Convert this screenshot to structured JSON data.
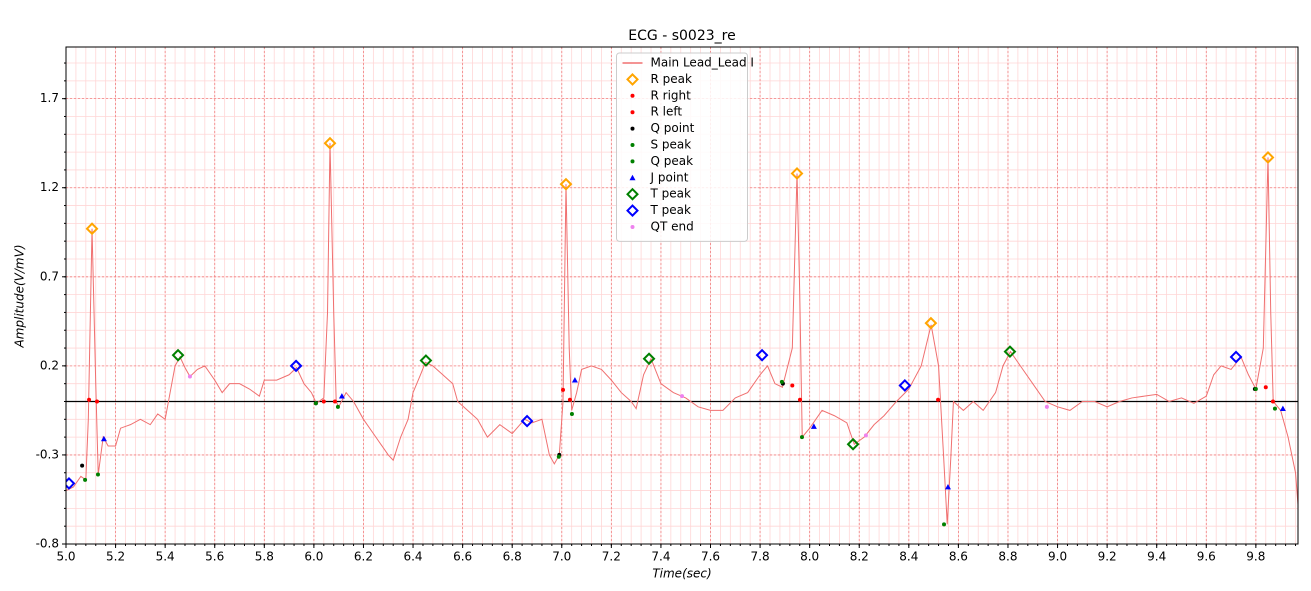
{
  "chart_data": {
    "type": "line",
    "title": "ECG - s0023_re",
    "xlabel": "Time(sec)",
    "ylabel": "Amplitude(V/mV)",
    "xlim": [
      5.0,
      9.97
    ],
    "ylim": [
      -0.8,
      1.99
    ],
    "xticks": [
      {
        "value": 5,
        "label": "5.0"
      },
      5.2,
      5.4,
      5.6,
      5.8,
      {
        "value": 6,
        "label": "6.0"
      },
      6.2,
      6.4,
      6.6,
      6.8,
      {
        "value": 7,
        "label": "7.0"
      },
      7.2,
      7.4,
      7.6,
      7.8,
      {
        "value": 8,
        "label": "8.0"
      },
      8.2,
      8.4,
      8.6,
      8.8,
      {
        "value": 9,
        "label": "9.0"
      },
      9.2,
      9.4,
      9.6,
      9.8
    ],
    "yticks": [
      -0.8,
      -0.3,
      0.2,
      0.7,
      1.2,
      1.7
    ],
    "grid": true,
    "minor_grid": true,
    "baseline": 0,
    "legend": "upper center",
    "series": [
      {
        "name": "Main Lead_Lead I",
        "color": "#f07070",
        "marker": "line",
        "x": [
          5.0,
          5.03,
          5.06,
          5.08,
          5.09,
          5.105,
          5.12,
          5.13,
          5.15,
          5.17,
          5.2,
          5.22,
          5.26,
          5.3,
          5.34,
          5.37,
          5.4,
          5.42,
          5.44,
          5.46,
          5.48,
          5.5,
          5.53,
          5.56,
          5.6,
          5.63,
          5.66,
          5.7,
          5.74,
          5.78,
          5.8,
          5.85,
          5.9,
          5.93,
          5.96,
          5.99,
          6.01,
          6.04,
          6.055,
          6.065,
          6.08,
          6.09,
          6.1,
          6.13,
          6.16,
          6.2,
          6.25,
          6.3,
          6.32,
          6.35,
          6.38,
          6.4,
          6.43,
          6.45,
          6.48,
          6.52,
          6.56,
          6.58,
          6.62,
          6.66,
          6.7,
          6.75,
          6.8,
          6.85,
          6.88,
          6.92,
          6.95,
          6.97,
          6.99,
          7.005,
          7.017,
          7.03,
          7.04,
          7.06,
          7.08,
          7.12,
          7.16,
          7.2,
          7.24,
          7.28,
          7.3,
          7.33,
          7.36,
          7.4,
          7.45,
          7.5,
          7.55,
          7.6,
          7.65,
          7.7,
          7.75,
          7.8,
          7.83,
          7.86,
          7.89,
          7.93,
          7.949,
          7.96,
          7.97,
          8.0,
          8.05,
          8.1,
          8.15,
          8.18,
          8.22,
          8.26,
          8.3,
          8.35,
          8.4,
          8.45,
          8.49,
          8.52,
          8.54,
          8.555,
          8.57,
          8.58,
          8.62,
          8.66,
          8.7,
          8.75,
          8.78,
          8.81,
          8.85,
          8.9,
          8.95,
          9.0,
          9.05,
          9.1,
          9.15,
          9.2,
          9.25,
          9.3,
          9.35,
          9.4,
          9.45,
          9.5,
          9.55,
          9.6,
          9.63,
          9.66,
          9.7,
          9.74,
          9.77,
          9.8,
          9.83,
          9.849,
          9.86,
          9.87,
          9.9,
          9.93,
          9.96,
          9.97
        ],
        "values": [
          -0.5,
          -0.48,
          -0.42,
          -0.44,
          -0.1,
          0.97,
          0.1,
          -0.41,
          -0.2,
          -0.25,
          -0.25,
          -0.15,
          -0.13,
          -0.1,
          -0.13,
          -0.07,
          -0.1,
          0.05,
          0.2,
          0.25,
          0.19,
          0.14,
          0.18,
          0.2,
          0.12,
          0.05,
          0.1,
          0.1,
          0.07,
          0.03,
          0.12,
          0.12,
          0.15,
          0.19,
          0.1,
          0.05,
          -0.01,
          0.02,
          0.5,
          1.45,
          0.5,
          0.0,
          -0.03,
          0.05,
          0.0,
          -0.1,
          -0.2,
          -0.3,
          -0.33,
          -0.2,
          -0.1,
          0.05,
          0.15,
          0.22,
          0.2,
          0.15,
          0.1,
          0.0,
          -0.05,
          -0.1,
          -0.2,
          -0.13,
          -0.18,
          -0.1,
          -0.12,
          -0.1,
          -0.3,
          -0.35,
          -0.3,
          0.0,
          1.22,
          0.3,
          -0.05,
          0.05,
          0.18,
          0.2,
          0.18,
          0.12,
          0.05,
          0.0,
          -0.04,
          0.15,
          0.24,
          0.1,
          0.05,
          0.02,
          -0.03,
          -0.05,
          -0.05,
          0.02,
          0.05,
          0.15,
          0.2,
          0.1,
          0.08,
          0.3,
          1.28,
          0.6,
          -0.2,
          -0.15,
          -0.05,
          -0.08,
          -0.12,
          -0.24,
          -0.2,
          -0.13,
          -0.08,
          0.0,
          0.07,
          0.2,
          0.43,
          0.2,
          -0.3,
          -0.69,
          -0.3,
          0.0,
          -0.05,
          0.0,
          -0.05,
          0.05,
          0.2,
          0.28,
          0.2,
          0.1,
          0.0,
          -0.03,
          -0.05,
          0.0,
          0.0,
          -0.03,
          0.0,
          0.02,
          0.03,
          0.04,
          0.0,
          0.02,
          -0.01,
          0.03,
          0.15,
          0.2,
          0.18,
          0.25,
          0.15,
          0.07,
          0.3,
          1.37,
          0.5,
          0.0,
          -0.05,
          -0.2,
          -0.4,
          -0.58
        ]
      },
      {
        "name": "R peak",
        "color": "#ffa500",
        "marker": "diamond",
        "x": [
          5.105,
          6.065,
          7.017,
          7.949,
          8.489,
          9.849
        ],
        "values": [
          0.97,
          1.45,
          1.22,
          1.28,
          0.44,
          1.37
        ]
      },
      {
        "name": "R right",
        "color": "#ff0000",
        "marker": "dot",
        "x": [
          5.125,
          6.085,
          7.033,
          7.961,
          8.518,
          9.869
        ],
        "values": [
          0.0,
          0.0,
          0.01,
          0.01,
          0.01,
          0.0
        ]
      },
      {
        "name": "R left",
        "color": "#ff0000",
        "marker": "dot",
        "x": [
          5.093,
          6.04,
          7.005,
          7.93,
          9.84
        ],
        "values": [
          0.01,
          0.0,
          0.065,
          0.09,
          0.08
        ]
      },
      {
        "name": "Q point",
        "color": "#000000",
        "marker": "dot",
        "x": [
          5.065,
          6.008,
          6.99,
          7.892,
          9.796
        ],
        "values": [
          -0.36,
          -0.01,
          -0.3,
          0.1,
          0.07
        ]
      },
      {
        "name": "S peak",
        "color": "#008000",
        "marker": "dot",
        "x": [
          5.129,
          6.097,
          7.041,
          7.969,
          8.542,
          9.877
        ],
        "values": [
          -0.41,
          -0.03,
          -0.07,
          -0.2,
          -0.69,
          -0.04
        ]
      },
      {
        "name": "Q peak",
        "color": "#008000",
        "marker": "dot",
        "x": [
          5.077,
          6.008,
          6.988,
          7.888,
          9.8
        ],
        "values": [
          -0.44,
          -0.01,
          -0.31,
          0.11,
          0.07
        ]
      },
      {
        "name": "J point",
        "color": "#0000ff",
        "marker": "triangle",
        "x": [
          5.153,
          6.113,
          7.053,
          8.017,
          8.558,
          9.909
        ],
        "values": [
          -0.21,
          0.03,
          0.12,
          -0.14,
          -0.48,
          -0.04
        ]
      },
      {
        "name": "T peak",
        "color": "#008000",
        "marker": "diamond",
        "x": [
          5.452,
          6.452,
          7.352,
          8.175,
          8.808
        ],
        "values": [
          0.26,
          0.23,
          0.24,
          -0.24,
          0.28
        ]
      },
      {
        "name": "T peak",
        "color": "#0000ff",
        "marker": "diamond",
        "x": [
          5.012,
          5.928,
          6.86,
          7.808,
          8.384,
          9.72
        ],
        "values": [
          -0.46,
          0.2,
          -0.11,
          0.26,
          0.09,
          0.25
        ]
      },
      {
        "name": "QT end",
        "color": "#ee82ee",
        "marker": "dot",
        "x": [
          5.5,
          7.485,
          8.227,
          8.957
        ],
        "values": [
          0.14,
          0.03,
          -0.19,
          -0.03
        ]
      }
    ]
  }
}
